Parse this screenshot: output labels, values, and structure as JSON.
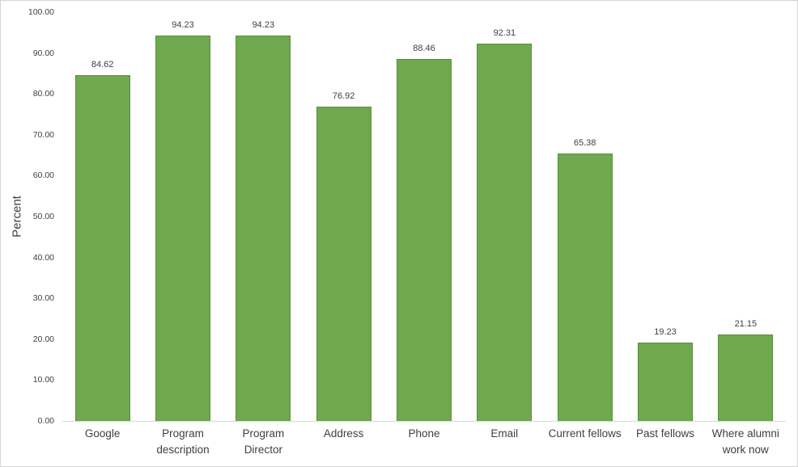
{
  "chart_data": {
    "type": "bar",
    "title": "",
    "categories": [
      "Google",
      "Program description",
      "Program Director",
      "Address",
      "Phone",
      "Email",
      "Current fellows",
      "Past fellows",
      "Where alumni work now"
    ],
    "values": [
      84.62,
      94.23,
      94.23,
      76.92,
      88.46,
      92.31,
      65.38,
      19.23,
      21.15
    ],
    "value_labels": [
      "84.62",
      "94.23",
      "94.23",
      "76.92",
      "88.46",
      "92.31",
      "65.38",
      "19.23",
      "21.15"
    ],
    "xlabel": "",
    "ylabel": "Percent",
    "ylim": [
      0,
      100
    ],
    "y_ticks": [
      "0.00",
      "10.00",
      "20.00",
      "30.00",
      "40.00",
      "50.00",
      "60.00",
      "70.00",
      "80.00",
      "90.00",
      "100.00"
    ],
    "grid": false,
    "legend": false,
    "bar_color": "#6fa84e",
    "bar_border_color": "#5b8f3c",
    "axis_line_color": "#d9d9d9",
    "text_color": "#404040"
  }
}
